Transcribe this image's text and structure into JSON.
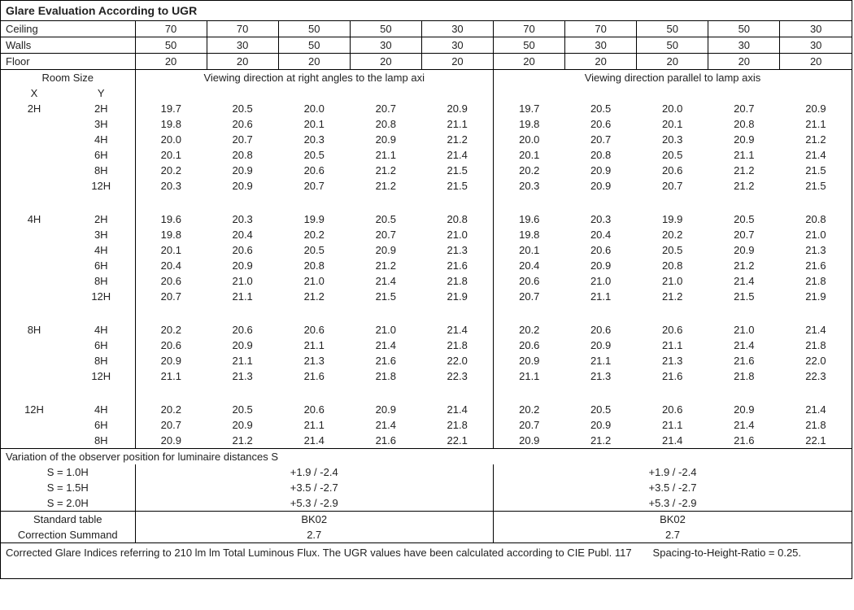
{
  "title": "Glare Evaluation According to UGR",
  "header_rows": [
    {
      "label": "Ceiling",
      "vals": [
        "70",
        "70",
        "50",
        "50",
        "30",
        "70",
        "70",
        "50",
        "50",
        "30"
      ]
    },
    {
      "label": "Walls",
      "vals": [
        "50",
        "30",
        "50",
        "30",
        "30",
        "50",
        "30",
        "50",
        "30",
        "30"
      ]
    },
    {
      "label": "Floor",
      "vals": [
        "20",
        "20",
        "20",
        "20",
        "20",
        "20",
        "20",
        "20",
        "20",
        "20"
      ]
    }
  ],
  "room_size_label": "Room Size",
  "x_label": "X",
  "y_label": "Y",
  "section_left": "Viewing direction at right angles to the lamp axi",
  "section_right": "Viewing direction parallel to lamp axis",
  "groups": [
    {
      "x": "2H",
      "rows": [
        {
          "y": "2H",
          "v": [
            "19.7",
            "20.5",
            "20.0",
            "20.7",
            "20.9",
            "19.7",
            "20.5",
            "20.0",
            "20.7",
            "20.9"
          ]
        },
        {
          "y": "3H",
          "v": [
            "19.8",
            "20.6",
            "20.1",
            "20.8",
            "21.1",
            "19.8",
            "20.6",
            "20.1",
            "20.8",
            "21.1"
          ]
        },
        {
          "y": "4H",
          "v": [
            "20.0",
            "20.7",
            "20.3",
            "20.9",
            "21.2",
            "20.0",
            "20.7",
            "20.3",
            "20.9",
            "21.2"
          ]
        },
        {
          "y": "6H",
          "v": [
            "20.1",
            "20.8",
            "20.5",
            "21.1",
            "21.4",
            "20.1",
            "20.8",
            "20.5",
            "21.1",
            "21.4"
          ]
        },
        {
          "y": "8H",
          "v": [
            "20.2",
            "20.9",
            "20.6",
            "21.2",
            "21.5",
            "20.2",
            "20.9",
            "20.6",
            "21.2",
            "21.5"
          ]
        },
        {
          "y": "12H",
          "v": [
            "20.3",
            "20.9",
            "20.7",
            "21.2",
            "21.5",
            "20.3",
            "20.9",
            "20.7",
            "21.2",
            "21.5"
          ]
        }
      ]
    },
    {
      "x": "4H",
      "rows": [
        {
          "y": "2H",
          "v": [
            "19.6",
            "20.3",
            "19.9",
            "20.5",
            "20.8",
            "19.6",
            "20.3",
            "19.9",
            "20.5",
            "20.8"
          ]
        },
        {
          "y": "3H",
          "v": [
            "19.8",
            "20.4",
            "20.2",
            "20.7",
            "21.0",
            "19.8",
            "20.4",
            "20.2",
            "20.7",
            "21.0"
          ]
        },
        {
          "y": "4H",
          "v": [
            "20.1",
            "20.6",
            "20.5",
            "20.9",
            "21.3",
            "20.1",
            "20.6",
            "20.5",
            "20.9",
            "21.3"
          ]
        },
        {
          "y": "6H",
          "v": [
            "20.4",
            "20.9",
            "20.8",
            "21.2",
            "21.6",
            "20.4",
            "20.9",
            "20.8",
            "21.2",
            "21.6"
          ]
        },
        {
          "y": "8H",
          "v": [
            "20.6",
            "21.0",
            "21.0",
            "21.4",
            "21.8",
            "20.6",
            "21.0",
            "21.0",
            "21.4",
            "21.8"
          ]
        },
        {
          "y": "12H",
          "v": [
            "20.7",
            "21.1",
            "21.2",
            "21.5",
            "21.9",
            "20.7",
            "21.1",
            "21.2",
            "21.5",
            "21.9"
          ]
        }
      ]
    },
    {
      "x": "8H",
      "rows": [
        {
          "y": "4H",
          "v": [
            "20.2",
            "20.6",
            "20.6",
            "21.0",
            "21.4",
            "20.2",
            "20.6",
            "20.6",
            "21.0",
            "21.4"
          ]
        },
        {
          "y": "6H",
          "v": [
            "20.6",
            "20.9",
            "21.1",
            "21.4",
            "21.8",
            "20.6",
            "20.9",
            "21.1",
            "21.4",
            "21.8"
          ]
        },
        {
          "y": "8H",
          "v": [
            "20.9",
            "21.1",
            "21.3",
            "21.6",
            "22.0",
            "20.9",
            "21.1",
            "21.3",
            "21.6",
            "22.0"
          ]
        },
        {
          "y": "12H",
          "v": [
            "21.1",
            "21.3",
            "21.6",
            "21.8",
            "22.3",
            "21.1",
            "21.3",
            "21.6",
            "21.8",
            "22.3"
          ]
        }
      ]
    },
    {
      "x": "12H",
      "rows": [
        {
          "y": "4H",
          "v": [
            "20.2",
            "20.5",
            "20.6",
            "20.9",
            "21.4",
            "20.2",
            "20.5",
            "20.6",
            "20.9",
            "21.4"
          ]
        },
        {
          "y": "6H",
          "v": [
            "20.7",
            "20.9",
            "21.1",
            "21.4",
            "21.8",
            "20.7",
            "20.9",
            "21.1",
            "21.4",
            "21.8"
          ]
        },
        {
          "y": "8H",
          "v": [
            "20.9",
            "21.2",
            "21.4",
            "21.6",
            "22.1",
            "20.9",
            "21.2",
            "21.4",
            "21.6",
            "22.1"
          ]
        }
      ]
    }
  ],
  "variation_title": "Variation of the observer position for luminaire distances S",
  "variation_rows": [
    {
      "label": "S = 1.0H",
      "left": "+1.9 / -2.4",
      "right": "+1.9 / -2.4"
    },
    {
      "label": "S = 1.5H",
      "left": "+3.5 / -2.7",
      "right": "+3.5 / -2.7"
    },
    {
      "label": "S = 2.0H",
      "left": "+5.3 / -2.9",
      "right": "+5.3 / -2.9"
    }
  ],
  "std_table_label": "Standard table",
  "std_table_left": "BK02",
  "std_table_right": "BK02",
  "corr_label": "Correction Summand",
  "corr_left": "2.7",
  "corr_right": "2.7",
  "footnote": "Corrected Glare Indices referring to 210 lm lm Total Luminous Flux. The UGR values have been calculated according to CIE Publ. 117  Spacing-to-Height-Ratio = 0.25."
}
